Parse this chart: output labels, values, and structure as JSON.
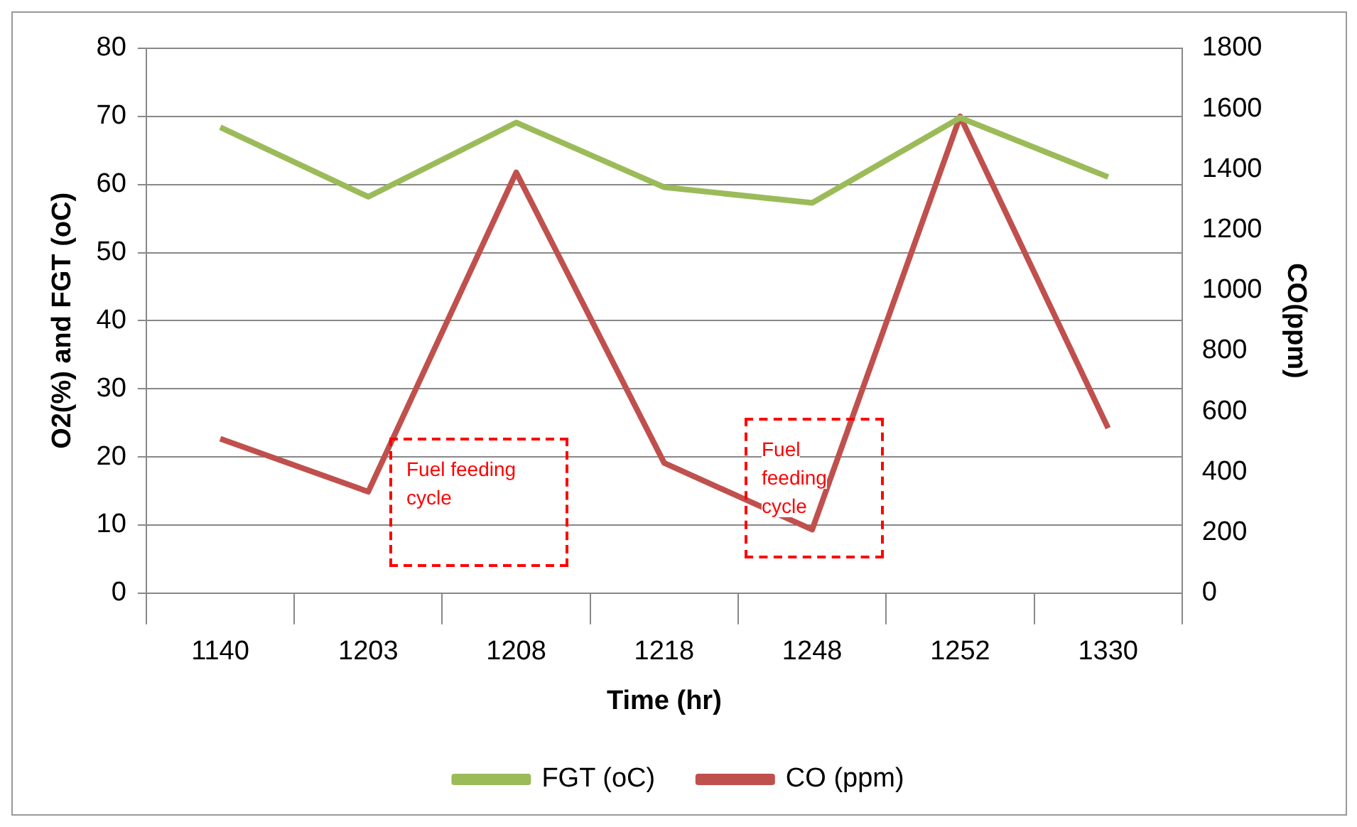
{
  "chart_data": {
    "type": "line",
    "categories": [
      "1140",
      "1203",
      "1208",
      "1218",
      "1248",
      "1252",
      "1330"
    ],
    "series": [
      {
        "name": "FGT (oC)",
        "color": "#9bbb59",
        "values": [
          68.4,
          58.2,
          69.1,
          59.6,
          57.3,
          69.8,
          61.1
        ]
      },
      {
        "name": "CO (ppm)",
        "color": "#c0504d",
        "axis": "y2",
        "values": [
          510,
          335,
          1390,
          430,
          210,
          1575,
          545
        ]
      }
    ],
    "xlabel": "Time (hr)",
    "ylabel": "O2(%) and FGT (oC)",
    "y2label": "CO(ppm)",
    "ylim": [
      0,
      80
    ],
    "yticks": [
      0,
      10,
      20,
      30,
      40,
      50,
      60,
      70,
      80
    ],
    "y2lim": [
      0,
      1800
    ],
    "y2ticks": [
      0,
      200,
      400,
      600,
      800,
      1000,
      1200,
      1400,
      1600,
      1800
    ],
    "annotations": [
      "Fuel feeding cycle",
      "Fuel feeding cycle"
    ],
    "grid": "y",
    "legend": "bottom",
    "marker": "none",
    "line_style": "solid"
  }
}
